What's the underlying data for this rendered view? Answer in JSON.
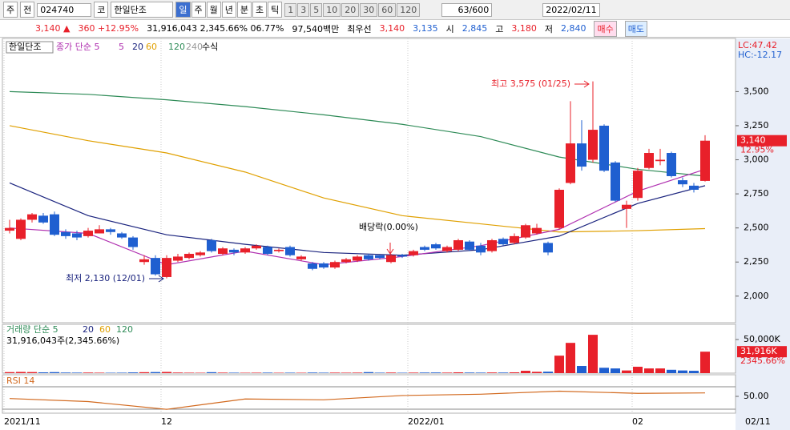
{
  "toolbar": {
    "period": "주",
    "prev": "전",
    "code": "024740",
    "market": "코",
    "name": "한일단조",
    "intervals": [
      "일",
      "주",
      "월",
      "년",
      "분",
      "초",
      "틱"
    ],
    "numbers": [
      "1",
      "3",
      "5",
      "10",
      "20",
      "30",
      "60",
      "120"
    ],
    "count": "63/600",
    "date": "2022/02/11"
  },
  "quote": {
    "price": "3,140 ▲",
    "change": "360 +12.95%",
    "volume": "31,916,043 2,345.66% 06.77%",
    "amount": "97,540백만",
    "best": "최우선",
    "ask": "3,140",
    "bid": "3,135",
    "open_label": "시",
    "open": "2,845",
    "high_label": "고",
    "high": "3,180",
    "low_label": "저",
    "low": "2,840",
    "buy": "매수",
    "sell": "매도"
  },
  "chart_data": {
    "type": "candlestick",
    "up_color": "#e8202a",
    "down_color": "#1f5fd0",
    "legend": {
      "name": "한일단조",
      "ma_label": "종가 단순 5",
      "formula": "수식"
    },
    "lc_label": "LC:47.42",
    "hc_label": "HC:-12.17",
    "last_label": "3,140",
    "change_label": "12.95%",
    "annotations": {
      "high": "최고 3,575 (01/25)",
      "low": "최저 2,130 (12/01)",
      "dividend": "배당락(0.00%)"
    },
    "open": [
      2480,
      2420,
      2560,
      2590,
      2600,
      2470,
      2460,
      2440,
      2460,
      2490,
      2460,
      2430,
      2250,
      2280,
      2140,
      2260,
      2280,
      2300,
      2410,
      2310,
      2340,
      2320,
      2350,
      2360,
      2330,
      2360,
      2270,
      2240,
      2240,
      2210,
      2250,
      2260,
      2300,
      2300,
      2250,
      2300,
      2300,
      2360,
      2380,
      2330,
      2340,
      2400,
      2370,
      2330,
      2420,
      2390,
      2430,
      2460,
      2390,
      2500,
      2830,
      3120,
      3000,
      3250,
      2980,
      2640,
      2720,
      2940,
      2990,
      3050,
      2850,
      2810,
      2845
    ],
    "high": [
      2560,
      2570,
      2610,
      2610,
      2620,
      2490,
      2480,
      2500,
      2520,
      2500,
      2470,
      2440,
      2300,
      2300,
      2300,
      2310,
      2320,
      2330,
      2420,
      2360,
      2350,
      2360,
      2380,
      2370,
      2350,
      2370,
      2300,
      2250,
      2250,
      2260,
      2280,
      2300,
      2310,
      2300,
      2310,
      2310,
      2340,
      2370,
      2390,
      2370,
      2420,
      2410,
      2390,
      2420,
      2430,
      2460,
      2530,
      2530,
      2400,
      2790,
      3430,
      3290,
      3575,
      3260,
      2990,
      2700,
      2940,
      3080,
      3080,
      3060,
      2870,
      2830,
      3180
    ],
    "low": [
      2460,
      2410,
      2540,
      2530,
      2440,
      2420,
      2410,
      2430,
      2460,
      2450,
      2420,
      2340,
      2230,
      2150,
      2130,
      2250,
      2270,
      2290,
      2320,
      2300,
      2300,
      2310,
      2340,
      2300,
      2320,
      2290,
      2260,
      2190,
      2200,
      2200,
      2240,
      2250,
      2260,
      2270,
      2240,
      2280,
      2290,
      2330,
      2340,
      2320,
      2330,
      2330,
      2300,
      2320,
      2370,
      2380,
      2420,
      2450,
      2300,
      2490,
      2820,
      2920,
      2980,
      2910,
      2690,
      2500,
      2700,
      2930,
      2960,
      2870,
      2800,
      2760,
      2840
    ],
    "close": [
      2500,
      2560,
      2600,
      2540,
      2450,
      2440,
      2430,
      2480,
      2490,
      2470,
      2430,
      2360,
      2270,
      2160,
      2280,
      2290,
      2310,
      2320,
      2330,
      2350,
      2320,
      2350,
      2370,
      2310,
      2340,
      2300,
      2290,
      2200,
      2210,
      2250,
      2270,
      2290,
      2270,
      2280,
      2300,
      2290,
      2330,
      2340,
      2350,
      2360,
      2410,
      2340,
      2320,
      2410,
      2380,
      2440,
      2520,
      2500,
      2320,
      2780,
      3120,
      2950,
      3220,
      2920,
      2700,
      2670,
      2920,
      3050,
      3000,
      2880,
      2820,
      2780,
      3140
    ],
    "ylim": [
      1805,
      3890
    ],
    "yticks": [
      {
        "value": 2000,
        "label": "2,000"
      },
      {
        "value": 2250,
        "label": "2,250"
      },
      {
        "value": 2500,
        "label": "2,500"
      },
      {
        "value": 2750,
        "label": "2,750"
      },
      {
        "value": 3000,
        "label": "3,000"
      },
      {
        "value": 3250,
        "label": "3,250"
      },
      {
        "value": 3500,
        "label": "3,500"
      }
    ],
    "xticks": [
      {
        "value": 0,
        "label": "2021/11"
      },
      {
        "value": 14,
        "label": "12"
      },
      {
        "value": 36,
        "label": "2022/01"
      },
      {
        "value": 56,
        "label": "02"
      }
    ],
    "end_date": "02/11",
    "ma_x": [
      0,
      7,
      14,
      21,
      28,
      35,
      42,
      49,
      56,
      62
    ],
    "series": [
      {
        "name": "5",
        "color": "#b030b0",
        "values": [
          2500,
          2460,
          2230,
          2330,
          2230,
          2290,
          2370,
          2490,
          2770,
          2930
        ]
      },
      {
        "name": "20",
        "color": "#1a237e",
        "values": [
          2830,
          2590,
          2450,
          2380,
          2320,
          2300,
          2340,
          2440,
          2680,
          2810
        ]
      },
      {
        "name": "60",
        "color": "#e0a000",
        "values": [
          3250,
          3140,
          3050,
          2910,
          2720,
          2590,
          2530,
          2470,
          2480,
          2495
        ]
      },
      {
        "name": "120",
        "color": "#2e8b57",
        "values": [
          3500,
          3480,
          3440,
          3390,
          3330,
          3260,
          3170,
          3020,
          2930,
          2880
        ]
      },
      {
        "name": "240",
        "color": "#999999",
        "values": []
      }
    ],
    "volume": {
      "label": "거래량 단순 5",
      "ma_names": [
        "20",
        "60",
        "120"
      ],
      "info": "31,916,043주(2,345.66%)",
      "last_label": "31,916K",
      "change_label": "2345.66%",
      "values": [
        1500,
        1800,
        1600,
        1200,
        1500,
        900,
        800,
        900,
        700,
        600,
        700,
        1100,
        1400,
        1600,
        1800,
        900,
        700,
        600,
        1400,
        800,
        700,
        600,
        700,
        800,
        600,
        700,
        600,
        900,
        700,
        800,
        700,
        800,
        1500,
        700,
        900,
        600,
        800,
        900,
        1000,
        800,
        1200,
        900,
        800,
        1000,
        900,
        1200,
        3500,
        2000,
        2200,
        26000,
        45000,
        10700,
        57000,
        8000,
        7000,
        4000,
        9500,
        7000,
        7000,
        5000,
        4000,
        3500,
        31916
      ],
      "ylim": [
        0,
        72600
      ],
      "yticks": [
        {
          "value": 50000,
          "label": "50,000K"
        }
      ]
    },
    "rsi": {
      "label": "RSI 14",
      "color": "#d2691e",
      "values": [
        45,
        38,
        20,
        44,
        42,
        52,
        55,
        62,
        57,
        58
      ],
      "ylim": [
        0,
        100
      ],
      "yticks": [
        {
          "value": 50,
          "label": "50.00"
        }
      ]
    }
  }
}
